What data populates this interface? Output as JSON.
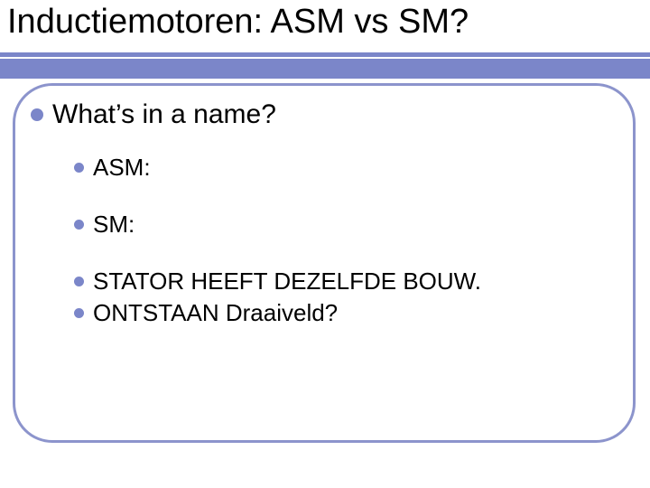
{
  "colors": {
    "accent": "#7b86c9",
    "border": "#8c94cc",
    "text": "#000000",
    "background": "#ffffff"
  },
  "title": {
    "text": "Inductiemotoren: ASM vs SM?",
    "fontsize": 38
  },
  "content": {
    "level1": [
      {
        "text": "What’s in a name?"
      }
    ],
    "level2": [
      {
        "text": "ASM:"
      },
      {
        "text": "SM:"
      },
      {
        "text": "STATOR HEEFT DEZELFDE BOUW."
      },
      {
        "text": "ONTSTAAN Draaiveld?"
      }
    ],
    "fontsizes": {
      "level1": 30,
      "level2": 26
    },
    "bullet_color": "#7b86c9"
  },
  "frame": {
    "border_color": "#8c94cc",
    "border_width": 3,
    "border_radius": 44
  }
}
